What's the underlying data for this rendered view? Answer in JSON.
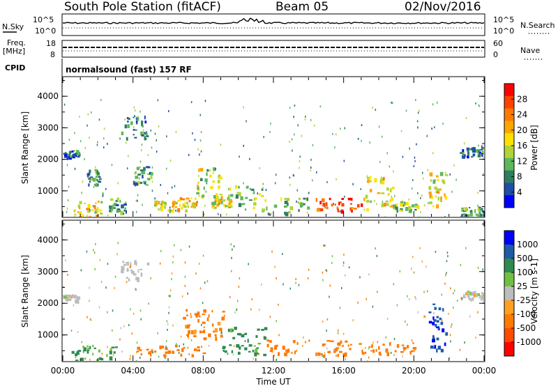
{
  "header": {
    "station": "South Pole Station (fitACF)",
    "beam": "Beam 05",
    "date": "02/Nov/2016"
  },
  "strips": {
    "nsky_label": "N.Sky",
    "nsky_ticks": [
      "10^5",
      "10^0"
    ],
    "nsearch_label": "N.Search",
    "freq_label_1": "Freq.",
    "freq_label_2": "[MHz]",
    "freq_ticks": [
      "18",
      "8"
    ],
    "nave_label": "Nave",
    "nave_ticks": [
      "60",
      "0"
    ],
    "cpid_label": "CPID",
    "cpid_text": "normalsound (fast) 157 RF"
  },
  "colors": {
    "power_scale": [
      "#0000ff",
      "#1e4fa8",
      "#2f7d5e",
      "#5db85c",
      "#b0d338",
      "#ffe000",
      "#ffa500",
      "#ff7a00",
      "#ff4000",
      "#ff0000"
    ],
    "velocity_scale": [
      "#ff0000",
      "#ff4a00",
      "#ff7a00",
      "#ffa020",
      "#bcbcbc",
      "#70c040",
      "#2f8a50",
      "#1e5aa8",
      "#0000ff"
    ]
  },
  "chart_data": [
    {
      "type": "heatmap",
      "name": "power",
      "xlabel": "",
      "ylabel": "Slant Range [km]",
      "xlim": [
        0,
        24
      ],
      "ylim": [
        180,
        4600
      ],
      "yticks": [
        "1000",
        "2000",
        "3000",
        "4000"
      ],
      "colorbar_label": "Power [dB]",
      "colorbar_ticks": [
        "28",
        "24",
        "20",
        "16",
        "12",
        "8",
        "4"
      ],
      "colorbar_range": [
        0,
        32
      ],
      "features": [
        {
          "t0": 0.0,
          "t1": 0.9,
          "r0": 2100,
          "r1": 2300,
          "v": 6
        },
        {
          "t0": 0.5,
          "t1": 2.3,
          "r0": 200,
          "r1": 700,
          "v": 18
        },
        {
          "t0": 1.3,
          "t1": 2.1,
          "r0": 1200,
          "r1": 1700,
          "v": 9
        },
        {
          "t0": 2.6,
          "t1": 3.6,
          "r0": 300,
          "r1": 800,
          "v": 10
        },
        {
          "t0": 3.3,
          "t1": 4.8,
          "r0": 2700,
          "r1": 3400,
          "v": 6
        },
        {
          "t0": 4.0,
          "t1": 5.0,
          "r0": 1200,
          "r1": 1800,
          "v": 9
        },
        {
          "t0": 5.2,
          "t1": 6.3,
          "r0": 400,
          "r1": 700,
          "v": 17
        },
        {
          "t0": 6.2,
          "t1": 7.6,
          "r0": 400,
          "r1": 800,
          "v": 20
        },
        {
          "t0": 7.6,
          "t1": 9.0,
          "r0": 800,
          "r1": 1800,
          "v": 14
        },
        {
          "t0": 8.4,
          "t1": 9.6,
          "r0": 450,
          "r1": 900,
          "v": 16
        },
        {
          "t0": 9.4,
          "t1": 11.4,
          "r0": 400,
          "r1": 1200,
          "v": 14
        },
        {
          "t0": 11.2,
          "t1": 14.0,
          "r0": 300,
          "r1": 900,
          "v": 12
        },
        {
          "t0": 14.4,
          "t1": 17.2,
          "r0": 380,
          "r1": 800,
          "v": 26
        },
        {
          "t0": 17.2,
          "t1": 18.8,
          "r0": 400,
          "r1": 1500,
          "v": 18
        },
        {
          "t0": 18.8,
          "t1": 20.2,
          "r0": 400,
          "r1": 700,
          "v": 14
        },
        {
          "t0": 20.8,
          "t1": 21.8,
          "r0": 500,
          "r1": 1700,
          "v": 18
        },
        {
          "t0": 22.6,
          "t1": 24.0,
          "r0": 2100,
          "r1": 2400,
          "v": 7
        },
        {
          "t0": 22.6,
          "t1": 24.0,
          "r0": 200,
          "r1": 500,
          "v": 9
        }
      ]
    },
    {
      "type": "heatmap",
      "name": "velocity",
      "xlabel": "Time UT",
      "ylabel": "Slant Range [km]",
      "xlim": [
        0,
        24
      ],
      "ylim": [
        180,
        4600
      ],
      "x_tick_labels": [
        "00:00",
        "04:00",
        "08:00",
        "12:00",
        "16:00",
        "20:00",
        "00:00"
      ],
      "yticks": [
        "1000",
        "2000",
        "3000",
        "4000"
      ],
      "colorbar_label": "Velocity [m s-1]",
      "colorbar_ticks": [
        "1000",
        "500",
        "100",
        "25",
        "-25",
        "-100",
        "-500",
        "-1000"
      ],
      "features": [
        {
          "t0": 0.0,
          "t1": 0.9,
          "r0": 2100,
          "r1": 2300,
          "v": 0
        },
        {
          "t0": 0.5,
          "t1": 3.0,
          "r0": 200,
          "r1": 700,
          "v": 120
        },
        {
          "t0": 3.3,
          "t1": 4.8,
          "r0": 2700,
          "r1": 3400,
          "v": 0
        },
        {
          "t0": 4.2,
          "t1": 8.0,
          "r0": 350,
          "r1": 700,
          "v": -200
        },
        {
          "t0": 6.8,
          "t1": 9.2,
          "r0": 900,
          "r1": 1900,
          "v": -150
        },
        {
          "t0": 9.0,
          "t1": 11.5,
          "r0": 400,
          "r1": 1300,
          "v": 150
        },
        {
          "t0": 11.5,
          "t1": 16.5,
          "r0": 380,
          "r1": 900,
          "v": -180
        },
        {
          "t0": 16.5,
          "t1": 20.0,
          "r0": 400,
          "r1": 800,
          "v": -200
        },
        {
          "t0": 20.8,
          "t1": 21.8,
          "r0": 500,
          "r1": 2000,
          "v": 900
        },
        {
          "t0": 22.6,
          "t1": 24.0,
          "r0": 2100,
          "r1": 2400,
          "v": 0
        }
      ]
    }
  ]
}
